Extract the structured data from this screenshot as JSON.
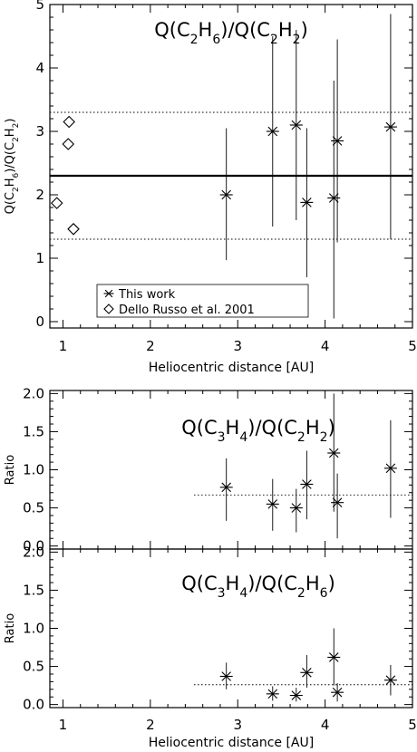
{
  "chart_data": [
    {
      "type": "scatter",
      "title": "Q(C2H6)/Q(C2H2)",
      "title_rich": [
        {
          "t": "Q(C"
        },
        {
          "t": "2",
          "sub": true
        },
        {
          "t": "H"
        },
        {
          "t": "6",
          "sub": true
        },
        {
          "t": ")/Q(C"
        },
        {
          "t": "2",
          "sub": true
        },
        {
          "t": "H"
        },
        {
          "t": "2",
          "sub": true
        },
        {
          "t": ")"
        }
      ],
      "ylabel": "Q(C2H6)/Q(C2H2)",
      "ylabel_rich": [
        {
          "t": "Q(C"
        },
        {
          "t": "2",
          "sub": true
        },
        {
          "t": "H"
        },
        {
          "t": "6",
          "sub": true
        },
        {
          "t": ")/Q(C"
        },
        {
          "t": "2",
          "sub": true
        },
        {
          "t": "H"
        },
        {
          "t": "2",
          "sub": true
        },
        {
          "t": ")"
        }
      ],
      "xlabel": "Heliocentric distance [AU]",
      "xlim": [
        0.85,
        5.0
      ],
      "ylim": [
        -0.1,
        5.0
      ],
      "xticks": [
        1,
        2,
        3,
        4,
        5
      ],
      "yticks": [
        0,
        1,
        2,
        3,
        4,
        5
      ],
      "ytick_labels": [
        "0",
        "1",
        "2",
        "3",
        "4",
        "5"
      ],
      "reference_lines": {
        "mean": 2.3,
        "band": [
          1.3,
          3.3
        ]
      },
      "legend": {
        "position": "bottom-left",
        "entries": [
          "This work",
          "Dello Russo et al. 2001"
        ]
      },
      "series": [
        {
          "name": "This work",
          "marker": "asterisk",
          "points": [
            {
              "x": 2.87,
              "y": 2.0,
              "lo": 0.97,
              "hi": 3.05
            },
            {
              "x": 3.4,
              "y": 3.0,
              "lo": 1.5,
              "hi": 4.5
            },
            {
              "x": 3.67,
              "y": 3.1,
              "lo": 1.6,
              "hi": 4.6
            },
            {
              "x": 3.79,
              "y": 1.88,
              "lo": 0.7,
              "hi": 3.05
            },
            {
              "x": 4.1,
              "y": 1.95,
              "lo": 0.05,
              "hi": 3.8
            },
            {
              "x": 4.14,
              "y": 2.85,
              "lo": 1.25,
              "hi": 4.45
            },
            {
              "x": 4.75,
              "y": 3.07,
              "lo": 1.3,
              "hi": 4.85
            }
          ]
        },
        {
          "name": "Dello Russo et al. 2001",
          "marker": "diamond",
          "points": [
            {
              "x": 0.93,
              "y": 1.87
            },
            {
              "x": 1.06,
              "y": 2.8
            },
            {
              "x": 1.07,
              "y": 3.15
            },
            {
              "x": 1.12,
              "y": 1.46
            }
          ]
        }
      ]
    },
    {
      "type": "scatter",
      "title": "Q(C3H4)/Q(C2H2)",
      "title_rich": [
        {
          "t": "Q(C"
        },
        {
          "t": "3",
          "sub": true
        },
        {
          "t": "H"
        },
        {
          "t": "4",
          "sub": true
        },
        {
          "t": ")/Q(C"
        },
        {
          "t": "2",
          "sub": true
        },
        {
          "t": "H"
        },
        {
          "t": "2",
          "sub": true
        },
        {
          "t": ")"
        }
      ],
      "ylabel": "Ratio",
      "xlabel": "",
      "xlim": [
        0.85,
        5.0
      ],
      "ylim": [
        -0.04,
        2.04
      ],
      "xticks": [
        1,
        2,
        3,
        4,
        5
      ],
      "yticks": [
        0,
        0.5,
        1.0,
        1.5,
        2.0
      ],
      "ytick_labels": [
        "0.0",
        "0.5",
        "1.0",
        "1.5",
        "2.0"
      ],
      "reference_lines": {
        "level": 0.67,
        "from_x": 2.5
      },
      "series": [
        {
          "name": "",
          "marker": "asterisk",
          "points": [
            {
              "x": 2.87,
              "y": 0.77,
              "lo": 0.33,
              "hi": 1.15
            },
            {
              "x": 3.4,
              "y": 0.55,
              "lo": 0.2,
              "hi": 0.88
            },
            {
              "x": 3.67,
              "y": 0.5,
              "lo": 0.18,
              "hi": 0.75
            },
            {
              "x": 3.79,
              "y": 0.81,
              "lo": 0.35,
              "hi": 1.25
            },
            {
              "x": 4.1,
              "y": 1.22,
              "lo": 0.45,
              "hi": 2.0
            },
            {
              "x": 4.14,
              "y": 0.57,
              "lo": 0.1,
              "hi": 0.95
            },
            {
              "x": 4.75,
              "y": 1.02,
              "lo": 0.37,
              "hi": 1.65
            }
          ]
        }
      ]
    },
    {
      "type": "scatter",
      "title": "Q(C3H4)/Q(C2H6)",
      "title_rich": [
        {
          "t": "Q(C"
        },
        {
          "t": "3",
          "sub": true
        },
        {
          "t": "H"
        },
        {
          "t": "4",
          "sub": true
        },
        {
          "t": ")/Q(C"
        },
        {
          "t": "2",
          "sub": true
        },
        {
          "t": "H"
        },
        {
          "t": "6",
          "sub": true
        },
        {
          "t": ")"
        }
      ],
      "ylabel": "Ratio",
      "xlabel": "Heliocentric distance [AU]",
      "xlim": [
        0.85,
        5.0
      ],
      "ylim": [
        -0.04,
        2.04
      ],
      "xticks": [
        1,
        2,
        3,
        4,
        5
      ],
      "yticks": [
        0,
        0.5,
        1.0,
        1.5,
        2.0
      ],
      "ytick_labels": [
        "0.0",
        "0.5",
        "1.0",
        "1.5",
        "2.0"
      ],
      "reference_lines": {
        "level": 0.26,
        "from_x": 2.5
      },
      "series": [
        {
          "name": "",
          "marker": "asterisk",
          "points": [
            {
              "x": 2.87,
              "y": 0.37,
              "lo": 0.2,
              "hi": 0.55
            },
            {
              "x": 3.4,
              "y": 0.14,
              "lo": 0.05,
              "hi": 0.24
            },
            {
              "x": 3.67,
              "y": 0.12,
              "lo": 0.04,
              "hi": 0.22
            },
            {
              "x": 3.79,
              "y": 0.42,
              "lo": 0.22,
              "hi": 0.65
            },
            {
              "x": 4.1,
              "y": 0.62,
              "lo": 0.25,
              "hi": 1.0
            },
            {
              "x": 4.14,
              "y": 0.16,
              "lo": 0.04,
              "hi": 0.28
            },
            {
              "x": 4.75,
              "y": 0.32,
              "lo": 0.12,
              "hi": 0.52
            }
          ]
        }
      ]
    }
  ]
}
